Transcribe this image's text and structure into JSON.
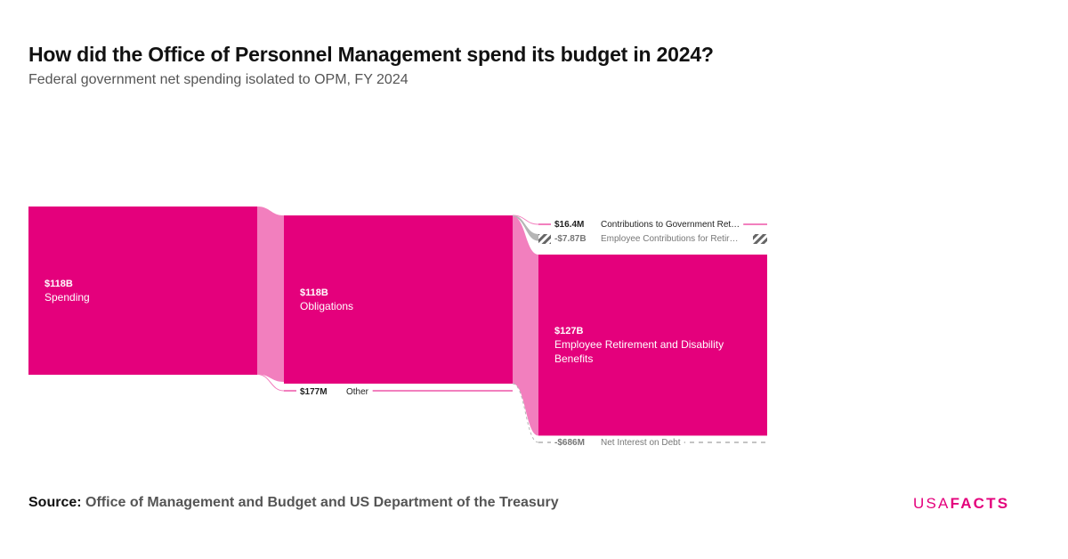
{
  "header": {
    "title": "How did the Office of Personnel Management spend its budget in 2024?",
    "subtitle": "Federal government net spending isolated to OPM, FY 2024"
  },
  "footer": {
    "source_label": "Source:",
    "source_text": "Office of Management and Budget and US Department of the Treasury",
    "logo_part1": "USA",
    "logo_part2": "FACTS"
  },
  "colors": {
    "primary": "#e4007c",
    "link": "#f27fbe",
    "negative": "#b5b5b5",
    "text_dark": "#111111",
    "text_muted": "#777777"
  },
  "chart_data": {
    "type": "sankey",
    "unit": "USD",
    "nodes": [
      {
        "id": "spending",
        "label": "Spending",
        "value_label": "$118B",
        "value": 118000000000,
        "column": 0
      },
      {
        "id": "obligations",
        "label": "Obligations",
        "value_label": "$118B",
        "value": 118000000000,
        "column": 1
      },
      {
        "id": "other",
        "label": "Other",
        "value_label": "$177M",
        "value": 177000000,
        "column": 1
      },
      {
        "id": "contrib_gov",
        "label": "Contributions to Government Ret…",
        "value_label": "$16.4M",
        "value": 16400000,
        "column": 2
      },
      {
        "id": "employee_contrib",
        "label": "Employee Contributions for Retir…",
        "value_label": "-$7.87B",
        "value": -7870000000,
        "column": 2
      },
      {
        "id": "retirement",
        "label": "Employee Retirement and Disability Benefits",
        "value_label": "$127B",
        "value": 127000000000,
        "column": 2
      },
      {
        "id": "net_interest",
        "label": "Net Interest on Debt",
        "value_label": "-$686M",
        "value": -686000000,
        "column": 2
      }
    ],
    "links": [
      {
        "source": "spending",
        "target": "obligations",
        "value": 118000000000
      },
      {
        "source": "spending",
        "target": "other",
        "value": 177000000
      },
      {
        "source": "obligations",
        "target": "contrib_gov",
        "value": 16400000
      },
      {
        "source": "obligations",
        "target": "employee_contrib",
        "value": -7870000000
      },
      {
        "source": "obligations",
        "target": "retirement",
        "value": 127000000000
      },
      {
        "source": "obligations",
        "target": "net_interest",
        "value": -686000000
      }
    ]
  }
}
